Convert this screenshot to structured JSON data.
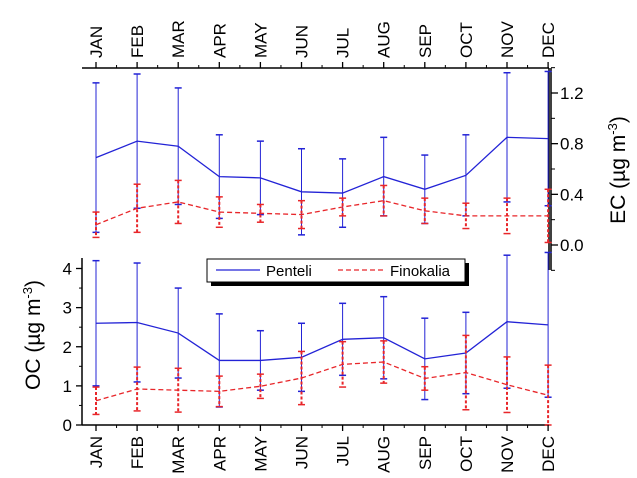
{
  "chart_data": [
    {
      "type": "line",
      "panel": "EC",
      "categories": [
        "JAN",
        "FEB",
        "MAR",
        "APR",
        "MAY",
        "JUN",
        "JUL",
        "AUG",
        "SEP",
        "OCT",
        "NOV",
        "DEC"
      ],
      "ylabel": "EC (µg m",
      "ylabel_sup": "-3",
      "ylabel_end": ")",
      "ylim": [
        -0.2,
        1.45
      ],
      "yticks": [
        "0.0",
        "0.4",
        "0.8",
        "1.2"
      ],
      "y_axis_side": "right",
      "series": [
        {
          "name": "Penteli",
          "color": "#2323d6",
          "style": "solid",
          "values": [
            0.69,
            0.82,
            0.78,
            0.54,
            0.53,
            0.42,
            0.41,
            0.54,
            0.44,
            0.55,
            0.85,
            0.84
          ],
          "errors": [
            0.59,
            0.53,
            0.46,
            0.33,
            0.29,
            0.34,
            0.27,
            0.31,
            0.27,
            0.32,
            0.51,
            0.53
          ]
        },
        {
          "name": "Finokalia",
          "color": "#e8262a",
          "style": "dashed",
          "values": [
            0.16,
            0.29,
            0.34,
            0.26,
            0.25,
            0.24,
            0.3,
            0.35,
            0.27,
            0.23,
            0.23,
            0.23
          ],
          "errors": [
            0.1,
            0.19,
            0.17,
            0.12,
            0.07,
            0.11,
            0.07,
            0.12,
            0.1,
            0.1,
            0.14,
            0.21
          ]
        }
      ]
    },
    {
      "type": "line",
      "panel": "OC",
      "categories": [
        "JAN",
        "FEB",
        "MAR",
        "APR",
        "MAY",
        "JUN",
        "JUL",
        "AUG",
        "SEP",
        "OCT",
        "NOV",
        "DEC"
      ],
      "ylabel": "OC (µg m",
      "ylabel_sup": "-3",
      "ylabel_end": ")",
      "ylim": [
        0,
        4.5
      ],
      "yticks": [
        "0",
        "1",
        "2",
        "3",
        "4"
      ],
      "y_axis_side": "left",
      "legend": "top-center",
      "series": [
        {
          "name": "Penteli",
          "color": "#2323d6",
          "style": "solid",
          "values": [
            2.6,
            2.62,
            2.35,
            1.65,
            1.65,
            1.73,
            2.19,
            2.23,
            1.69,
            1.84,
            2.64,
            2.56
          ],
          "errors": [
            1.6,
            1.52,
            1.15,
            1.19,
            0.76,
            0.87,
            0.92,
            1.05,
            1.04,
            1.04,
            1.7,
            1.85
          ]
        },
        {
          "name": "Finokalia",
          "color": "#e8262a",
          "style": "dashed",
          "values": [
            0.62,
            0.92,
            0.89,
            0.86,
            0.99,
            1.2,
            1.55,
            1.61,
            1.19,
            1.34,
            1.03,
            0.76
          ],
          "errors": [
            0.35,
            0.56,
            0.56,
            0.39,
            0.31,
            0.68,
            0.58,
            0.54,
            0.3,
            0.95,
            0.71,
            0.77
          ]
        }
      ]
    }
  ]
}
